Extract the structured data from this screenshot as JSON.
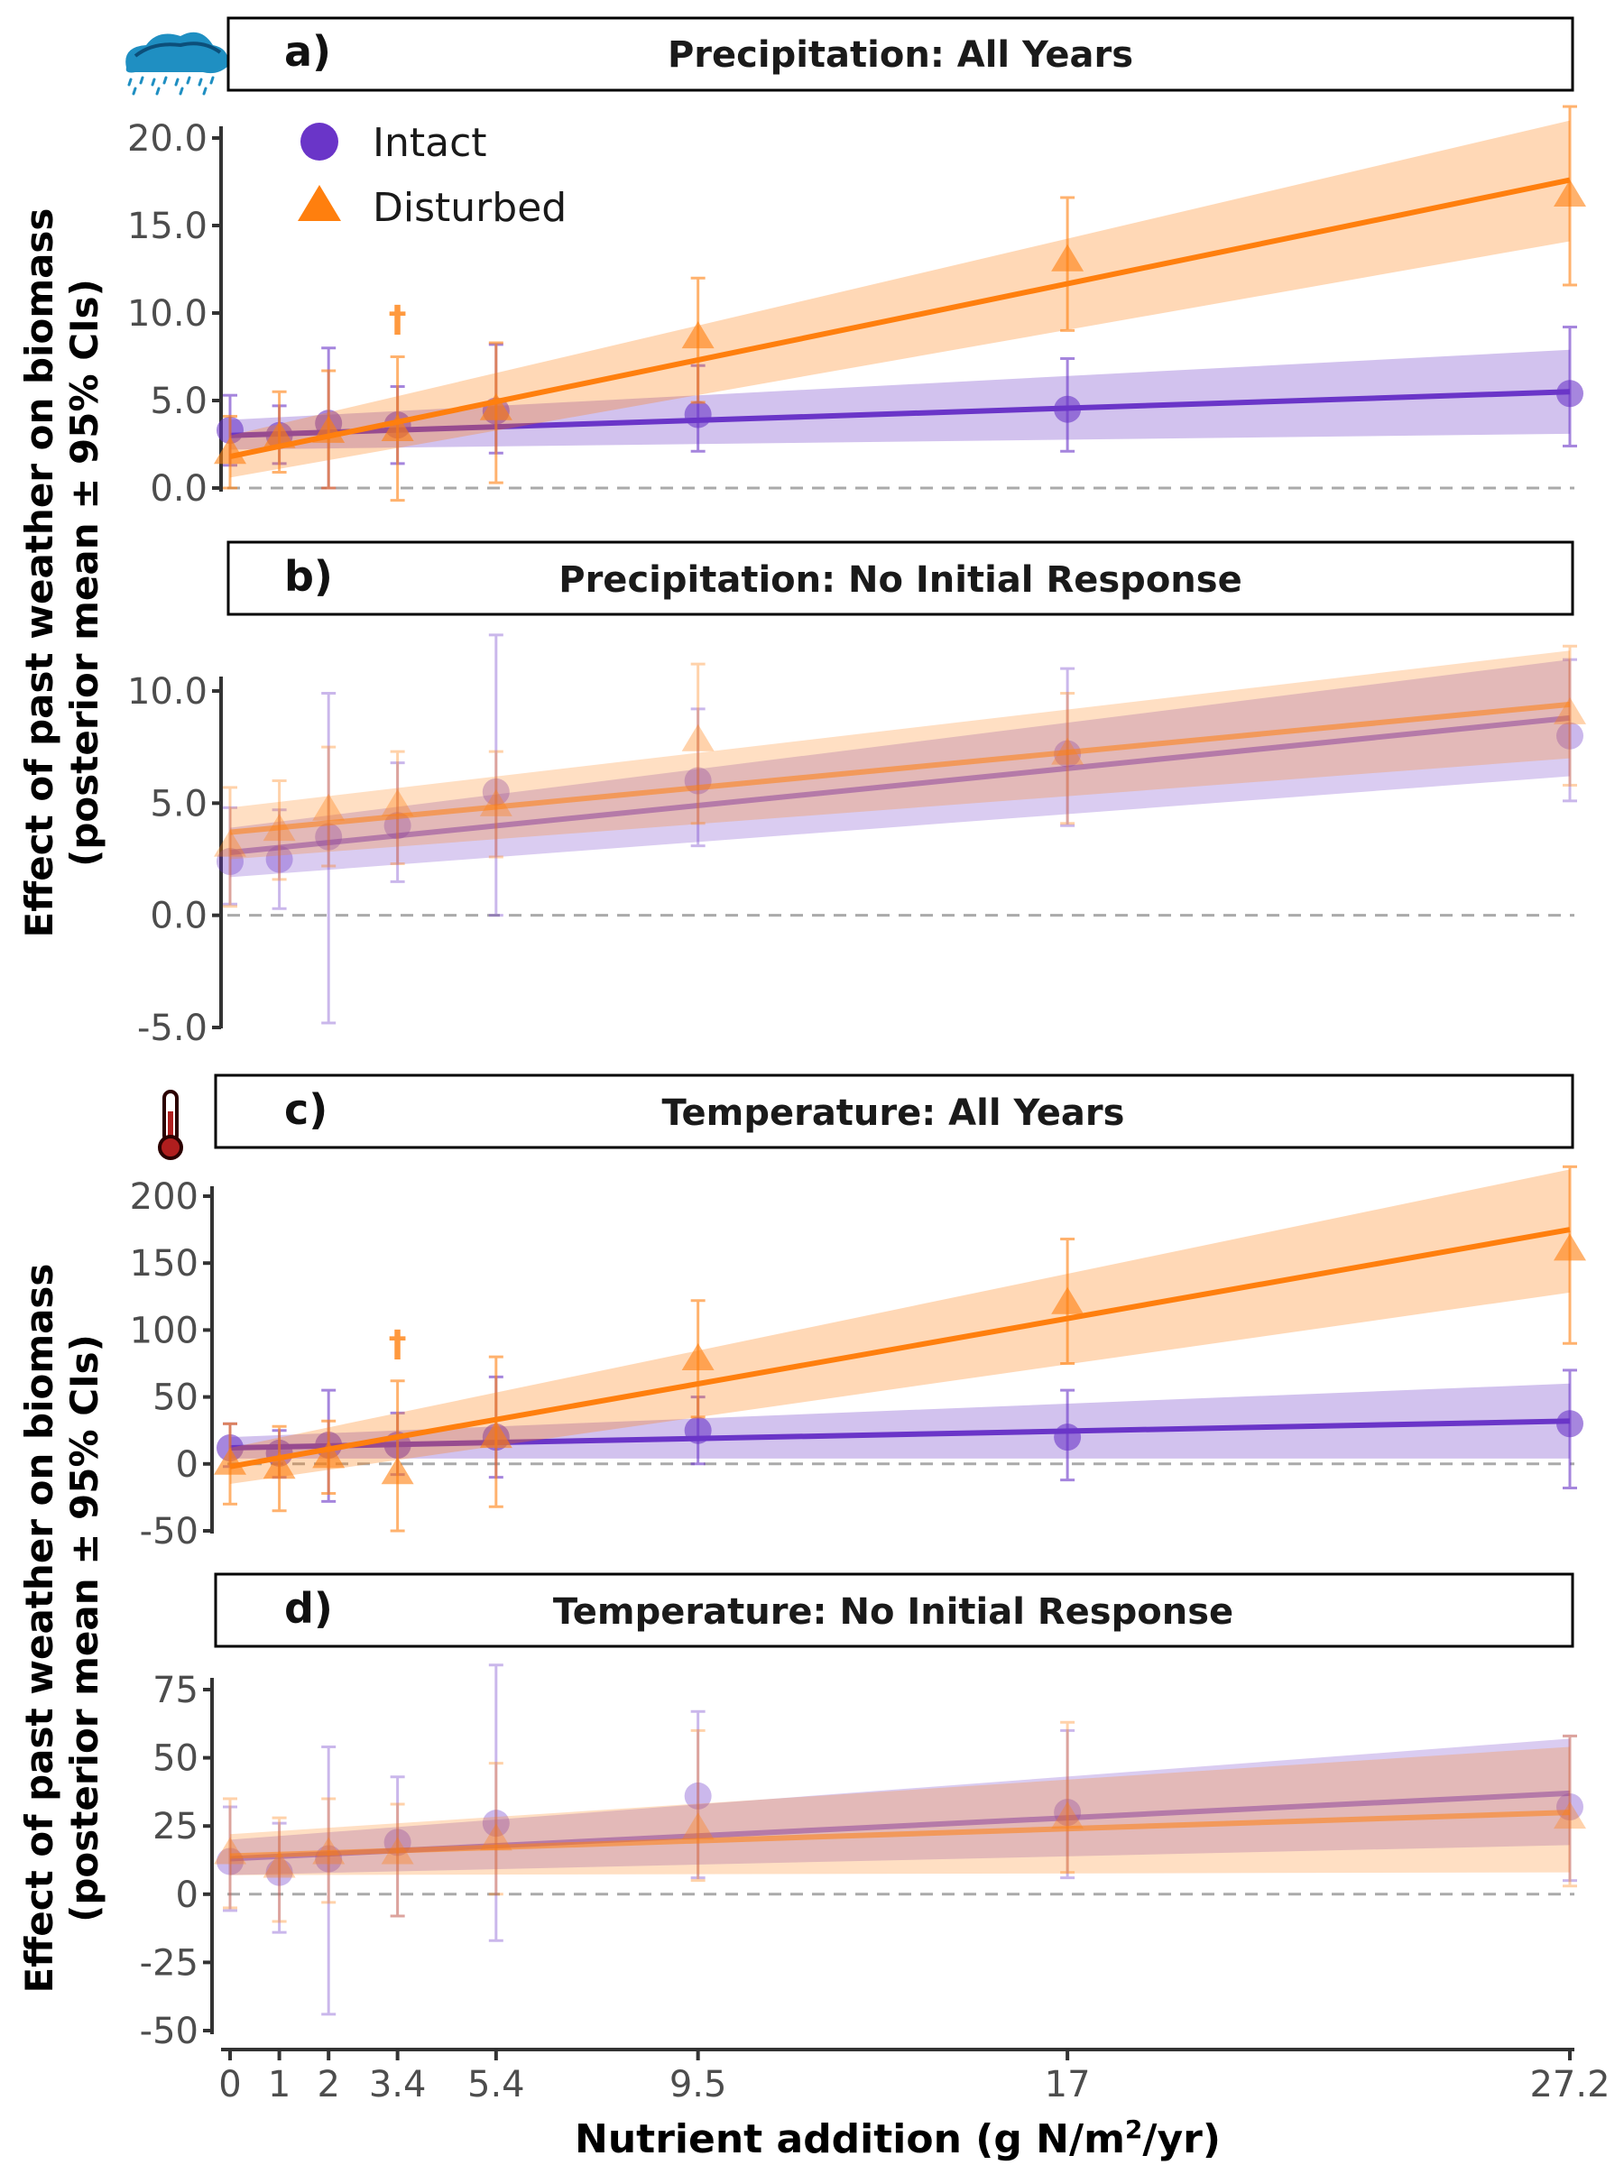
{
  "x_axis": {
    "title_pre": "Nutrient addition (g N/m",
    "title_sup": "2",
    "title_post": "/yr)",
    "tick_values": [
      0,
      1,
      2,
      3.4,
      5.4,
      9.5,
      17,
      27.2
    ],
    "tick_labels": [
      "0",
      "1",
      "2",
      "3.4",
      "5.4",
      "9.5",
      "17",
      "27.2"
    ]
  },
  "y_axis_title": {
    "line1": "Effect of past weather on biomass",
    "line2": "(posterior mean ± 95% CIs)"
  },
  "legend": {
    "intact": "Intact",
    "disturbed": "Disturbed"
  },
  "icons": {
    "precipitation": "rain-cloud-icon",
    "temperature": "thermometer-icon"
  },
  "colors": {
    "intact": "#6a35c8",
    "disturbed": "#ff7f0e",
    "zero_line": "#aaaaaa"
  },
  "dagger_symbol": "†",
  "chart_data": [
    {
      "type": "scatter",
      "panel": "a)",
      "title": "Precipitation: All Years",
      "ylim": [
        0,
        20
      ],
      "yticks": [
        0,
        5,
        10,
        15,
        20
      ],
      "ytick_labels": [
        "0.0",
        "5.0",
        "10.0",
        "15.0",
        "20.0"
      ],
      "faded": false,
      "dagger_x": 3.4,
      "dagger_y": 9.7,
      "series": [
        {
          "name": "Intact",
          "x": [
            0,
            1,
            2,
            3.4,
            5.4,
            9.5,
            17,
            27.2
          ],
          "y": [
            3.3,
            3.0,
            3.7,
            3.6,
            4.4,
            4.2,
            4.5,
            5.4
          ],
          "lo": [
            1.3,
            1.4,
            0.0,
            1.4,
            2.0,
            2.1,
            2.1,
            2.4
          ],
          "hi": [
            5.3,
            4.7,
            8.0,
            5.8,
            8.2,
            7.0,
            7.4,
            9.2
          ],
          "fit": {
            "y0": 3.0,
            "y1": 5.5,
            "lo0": 2.2,
            "hi0": 3.9,
            "lo1": 3.1,
            "hi1": 7.9
          }
        },
        {
          "name": "Disturbed",
          "x": [
            0,
            1,
            2,
            3.4,
            5.4,
            9.5,
            17,
            27.2
          ],
          "y": [
            2.0,
            2.9,
            3.2,
            3.3,
            4.5,
            8.6,
            13.0,
            16.7
          ],
          "lo": [
            0.0,
            0.9,
            0.0,
            -0.7,
            0.3,
            4.9,
            9.0,
            11.6
          ],
          "hi": [
            4.1,
            5.5,
            6.7,
            7.5,
            8.3,
            12.0,
            16.6,
            21.8
          ],
          "fit": {
            "y0": 1.8,
            "y1": 17.6,
            "lo0": 0.6,
            "hi0": 3.0,
            "lo1": 14.1,
            "hi1": 21.0
          }
        }
      ]
    },
    {
      "type": "scatter",
      "panel": "b)",
      "title": "Precipitation: No Initial Response",
      "ylim": [
        -5,
        10
      ],
      "yticks": [
        -5,
        0,
        5,
        10
      ],
      "ytick_labels": [
        "-5.0",
        "0.0",
        "5.0",
        "10.0"
      ],
      "faded": true,
      "series": [
        {
          "name": "Intact",
          "x": [
            0,
            1,
            2,
            3.4,
            5.4,
            9.5,
            17,
            27.2
          ],
          "y": [
            2.4,
            2.5,
            3.5,
            4.0,
            5.5,
            6.0,
            7.2,
            8.0
          ],
          "lo": [
            0.5,
            0.3,
            -4.8,
            1.5,
            0.0,
            3.1,
            4.0,
            5.1
          ],
          "hi": [
            4.8,
            4.7,
            9.9,
            6.8,
            12.5,
            9.2,
            11.0,
            11.4
          ],
          "fit": {
            "y0": 2.8,
            "y1": 8.8,
            "lo0": 1.7,
            "hi0": 3.9,
            "lo1": 6.2,
            "hi1": 11.4
          }
        },
        {
          "name": "Disturbed",
          "x": [
            0,
            1,
            2,
            3.4,
            5.4,
            9.5,
            17,
            27.2
          ],
          "y": [
            3.1,
            3.8,
            4.7,
            4.9,
            4.9,
            7.8,
            7.2,
            9.0
          ],
          "lo": [
            0.4,
            1.6,
            2.2,
            2.3,
            2.6,
            4.1,
            4.1,
            5.8
          ],
          "hi": [
            5.7,
            6.0,
            7.5,
            7.3,
            7.3,
            11.2,
            9.9,
            12.0
          ],
          "fit": {
            "y0": 3.7,
            "y1": 9.4,
            "lo0": 2.5,
            "hi0": 4.8,
            "lo1": 7.0,
            "hi1": 11.8
          }
        }
      ]
    },
    {
      "type": "scatter",
      "panel": "c)",
      "title": "Temperature: All Years",
      "ylim": [
        -50,
        200
      ],
      "yticks": [
        -50,
        0,
        50,
        100,
        150,
        200
      ],
      "ytick_labels": [
        "-50",
        "0",
        "50",
        "100",
        "150",
        "200"
      ],
      "faded": false,
      "dagger_x": 3.4,
      "dagger_y": 90,
      "series": [
        {
          "name": "Intact",
          "x": [
            0,
            1,
            2,
            3.4,
            5.4,
            9.5,
            17,
            27.2
          ],
          "y": [
            12,
            8,
            14,
            14,
            20,
            25,
            20,
            30
          ],
          "lo": [
            -2,
            -10,
            -28,
            -8,
            -10,
            0,
            -12,
            -18
          ],
          "hi": [
            30,
            25,
            55,
            38,
            65,
            50,
            55,
            70
          ],
          "fit": {
            "y0": 12,
            "y1": 32,
            "lo0": 4,
            "hi0": 20,
            "lo1": 4,
            "hi1": 60
          }
        },
        {
          "name": "Disturbed",
          "x": [
            0,
            1,
            2,
            3.4,
            5.4,
            9.5,
            17,
            27.2
          ],
          "y": [
            0,
            -3,
            5,
            -7,
            20,
            78,
            120,
            160
          ],
          "lo": [
            -30,
            -35,
            -22,
            -50,
            -32,
            35,
            75,
            90
          ],
          "hi": [
            30,
            28,
            32,
            62,
            80,
            122,
            168,
            222
          ],
          "fit": {
            "y0": -2,
            "y1": 175,
            "lo0": -15,
            "hi0": 12,
            "lo1": 128,
            "hi1": 220
          }
        }
      ]
    },
    {
      "type": "scatter",
      "panel": "d)",
      "title": "Temperature: No Initial Response",
      "ylim": [
        -50,
        75
      ],
      "yticks": [
        -50,
        -25,
        0,
        25,
        50,
        75
      ],
      "ytick_labels": [
        "-50",
        "-25",
        "0",
        "25",
        "50",
        "75"
      ],
      "faded": true,
      "series": [
        {
          "name": "Intact",
          "x": [
            0,
            1,
            2,
            3.4,
            5.4,
            9.5,
            17,
            27.2
          ],
          "y": [
            12,
            8,
            13,
            19,
            26,
            36,
            30,
            32
          ],
          "lo": [
            -6,
            -14,
            -44,
            -8,
            -17,
            6,
            6,
            5
          ],
          "hi": [
            32,
            26,
            54,
            43,
            84,
            67,
            60,
            58
          ],
          "fit": {
            "y0": 13,
            "y1": 37,
            "lo0": 7,
            "hi0": 20,
            "lo1": 18,
            "hi1": 57
          }
        },
        {
          "name": "Disturbed",
          "x": [
            0,
            1,
            2,
            3.4,
            5.4,
            9.5,
            17,
            27.2
          ],
          "y": [
            15,
            10,
            15,
            15,
            20,
            24,
            28,
            28
          ],
          "lo": [
            -5,
            -10,
            -3,
            -8,
            0,
            5,
            8,
            3
          ],
          "hi": [
            35,
            28,
            35,
            33,
            48,
            60,
            63,
            58
          ],
          "fit": {
            "y0": 14,
            "y1": 30,
            "lo0": 7,
            "hi0": 22,
            "lo1": 8,
            "hi1": 54
          }
        }
      ]
    }
  ]
}
